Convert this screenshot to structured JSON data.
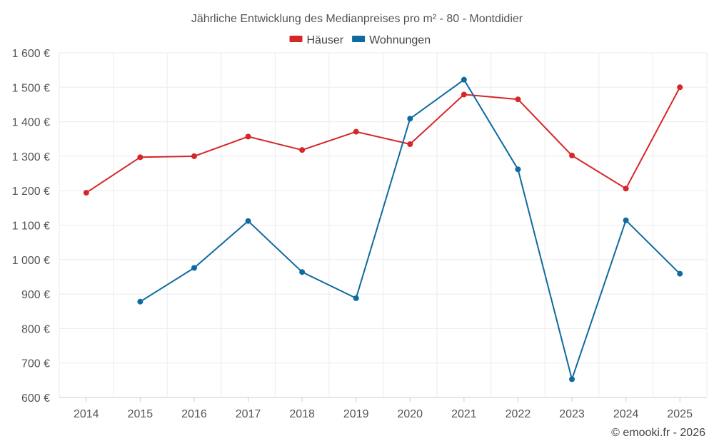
{
  "chart_data": {
    "type": "line",
    "title": "Jährliche Entwicklung des Medianpreises pro m² - 80 - Montdidier",
    "categories": [
      "2014",
      "2015",
      "2016",
      "2017",
      "2018",
      "2019",
      "2020",
      "2021",
      "2022",
      "2023",
      "2024",
      "2025"
    ],
    "ylim": [
      600,
      1600
    ],
    "yticks": [
      600,
      700,
      800,
      900,
      1000,
      1100,
      1200,
      1300,
      1400,
      1500,
      1600
    ],
    "ytick_labels": [
      "600 €",
      "700 €",
      "800 €",
      "900 €",
      "1 000 €",
      "1 100 €",
      "1 200 €",
      "1 300 €",
      "1 400 €",
      "1 500 €",
      "1 600 €"
    ],
    "series": [
      {
        "name": "Häuser",
        "color": "#d62728",
        "values": [
          1194,
          1297,
          1300,
          1357,
          1318,
          1371,
          1335,
          1479,
          1465,
          1302,
          1206,
          1500
        ]
      },
      {
        "name": "Wohnungen",
        "color": "#0f6aa0",
        "values": [
          null,
          878,
          976,
          1112,
          964,
          888,
          1409,
          1522,
          1262,
          653,
          1114,
          959
        ]
      }
    ],
    "legend_position": "top-center",
    "grid": true
  },
  "credit": "© emooki.fr - 2026"
}
